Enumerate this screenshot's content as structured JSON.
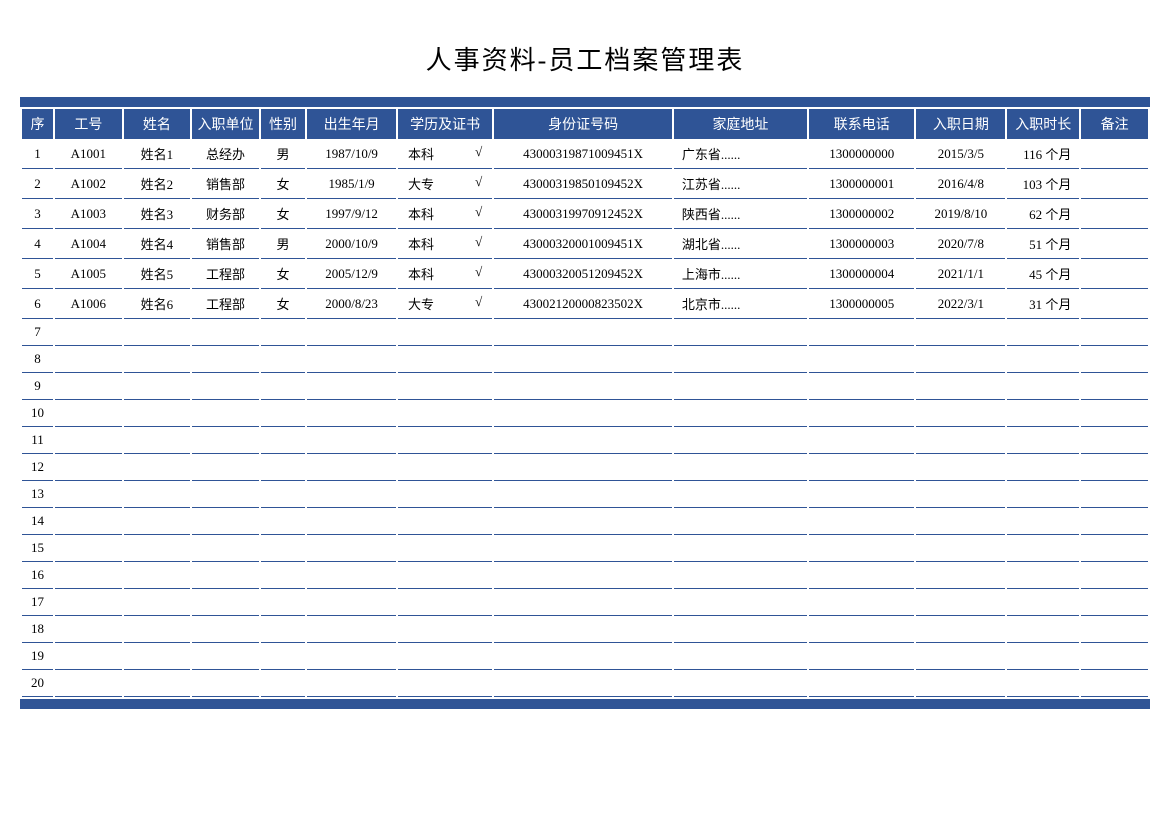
{
  "title": "人事资料-员工档案管理表",
  "colors": {
    "header_bg": "#2f5496",
    "header_text": "#ffffff",
    "border": "#2f5496",
    "body_text": "#000000",
    "bg": "#ffffff"
  },
  "columns": [
    {
      "key": "seq",
      "label": "序",
      "class": "col-seq"
    },
    {
      "key": "emp_id",
      "label": "工号",
      "class": "col-id"
    },
    {
      "key": "name",
      "label": "姓名",
      "class": "col-name"
    },
    {
      "key": "dept",
      "label": "入职单位",
      "class": "col-dept"
    },
    {
      "key": "gender",
      "label": "性别",
      "class": "col-gender"
    },
    {
      "key": "birth",
      "label": "出生年月",
      "class": "col-birth"
    },
    {
      "key": "edu",
      "label": "学历及证书",
      "class": "col-edu"
    },
    {
      "key": "idcard",
      "label": "身份证号码",
      "class": "col-idcard"
    },
    {
      "key": "addr",
      "label": "家庭地址",
      "class": "col-addr"
    },
    {
      "key": "phone",
      "label": "联系电话",
      "class": "col-phone"
    },
    {
      "key": "hire",
      "label": "入职日期",
      "class": "col-hire"
    },
    {
      "key": "tenure",
      "label": "入职时长",
      "class": "col-tenure"
    },
    {
      "key": "remark",
      "label": "备注",
      "class": "col-remark"
    }
  ],
  "total_rows": 20,
  "rows": [
    {
      "seq": "1",
      "emp_id": "A1001",
      "name": "姓名1",
      "dept": "总经办",
      "gender": "男",
      "birth": "1987/10/9",
      "edu": "本科",
      "cert": "√",
      "idcard": "43000319871009451X",
      "addr": "广东省......",
      "phone": "1300000000",
      "hire": "2015/3/5",
      "tenure": "116 个月",
      "remark": ""
    },
    {
      "seq": "2",
      "emp_id": "A1002",
      "name": "姓名2",
      "dept": "销售部",
      "gender": "女",
      "birth": "1985/1/9",
      "edu": "大专",
      "cert": "√",
      "idcard": "43000319850109452X",
      "addr": "江苏省......",
      "phone": "1300000001",
      "hire": "2016/4/8",
      "tenure": "103 个月",
      "remark": ""
    },
    {
      "seq": "3",
      "emp_id": "A1003",
      "name": "姓名3",
      "dept": "财务部",
      "gender": "女",
      "birth": "1997/9/12",
      "edu": "本科",
      "cert": "√",
      "idcard": "43000319970912452X",
      "addr": "陕西省......",
      "phone": "1300000002",
      "hire": "2019/8/10",
      "tenure": "62 个月",
      "remark": ""
    },
    {
      "seq": "4",
      "emp_id": "A1004",
      "name": "姓名4",
      "dept": "销售部",
      "gender": "男",
      "birth": "2000/10/9",
      "edu": "本科",
      "cert": "√",
      "idcard": "43000320001009451X",
      "addr": "湖北省......",
      "phone": "1300000003",
      "hire": "2020/7/8",
      "tenure": "51 个月",
      "remark": ""
    },
    {
      "seq": "5",
      "emp_id": "A1005",
      "name": "姓名5",
      "dept": "工程部",
      "gender": "女",
      "birth": "2005/12/9",
      "edu": "本科",
      "cert": "√",
      "idcard": "43000320051209452X",
      "addr": "上海市......",
      "phone": "1300000004",
      "hire": "2021/1/1",
      "tenure": "45 个月",
      "remark": ""
    },
    {
      "seq": "6",
      "emp_id": "A1006",
      "name": "姓名6",
      "dept": "工程部",
      "gender": "女",
      "birth": "2000/8/23",
      "edu": "大专",
      "cert": "√",
      "idcard": "43002120000823502X",
      "addr": "北京市......",
      "phone": "1300000005",
      "hire": "2022/3/1",
      "tenure": "31 个月",
      "remark": ""
    }
  ]
}
